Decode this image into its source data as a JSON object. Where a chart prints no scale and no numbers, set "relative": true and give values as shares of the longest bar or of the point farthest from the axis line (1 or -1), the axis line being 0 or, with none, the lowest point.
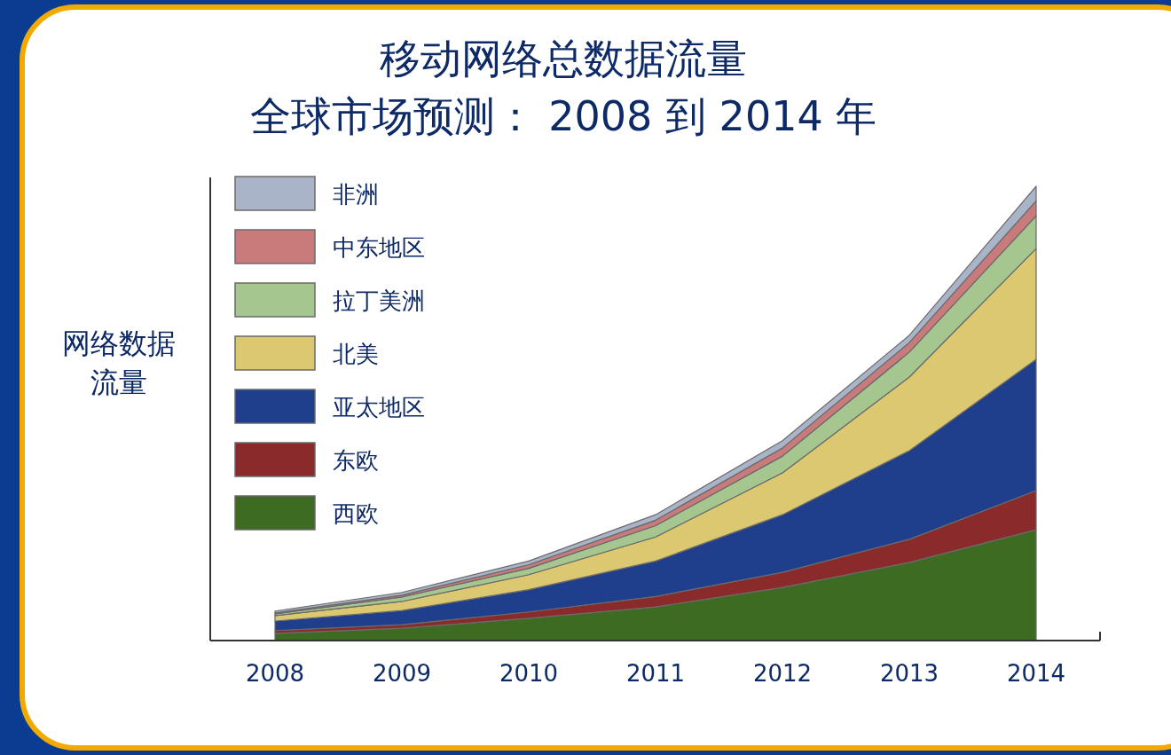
{
  "chart_data": {
    "type": "area",
    "stacked": true,
    "relative": true,
    "title": "移动网络总数据流量",
    "subtitle": "全球市场预测： 2008 到 2014 年",
    "ylabel": "网络数据流量",
    "legend": "top left",
    "categories": [
      "2008",
      "2009",
      "2010",
      "2011",
      "2012",
      "2013",
      "2014"
    ],
    "series": [
      {
        "name": "西欧",
        "color": "#3d6b22",
        "values": [
          0.016,
          0.027,
          0.049,
          0.074,
          0.117,
          0.172,
          0.244
        ]
      },
      {
        "name": "东欧",
        "color": "#8b2a2a",
        "values": [
          0.006,
          0.008,
          0.014,
          0.023,
          0.033,
          0.051,
          0.086
        ]
      },
      {
        "name": "亚太地区",
        "color": "#1f3f8c",
        "values": [
          0.021,
          0.031,
          0.049,
          0.078,
          0.127,
          0.195,
          0.289
        ]
      },
      {
        "name": "北美",
        "color": "#dcc870",
        "values": [
          0.012,
          0.02,
          0.033,
          0.053,
          0.092,
          0.162,
          0.244
        ]
      },
      {
        "name": "拉丁美洲",
        "color": "#a5c68f",
        "values": [
          0.004,
          0.01,
          0.014,
          0.025,
          0.037,
          0.055,
          0.072
        ]
      },
      {
        "name": "中东地区",
        "color": "#c97b7b",
        "values": [
          0.002,
          0.004,
          0.008,
          0.012,
          0.018,
          0.021,
          0.033
        ]
      },
      {
        "name": "非洲",
        "color": "#a9b4c9",
        "values": [
          0.004,
          0.006,
          0.008,
          0.012,
          0.016,
          0.016,
          0.032
        ]
      }
    ]
  }
}
